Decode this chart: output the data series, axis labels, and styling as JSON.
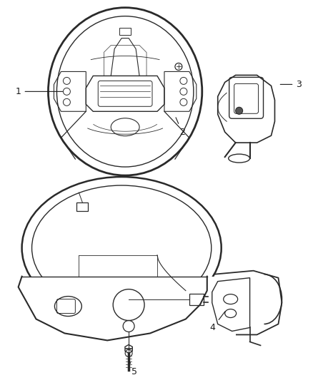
{
  "background_color": "#ffffff",
  "line_color": "#2a2a2a",
  "label_color": "#1a1a1a",
  "figsize": [
    4.38,
    5.33
  ],
  "dpi": 100,
  "label_fontsize": 9
}
